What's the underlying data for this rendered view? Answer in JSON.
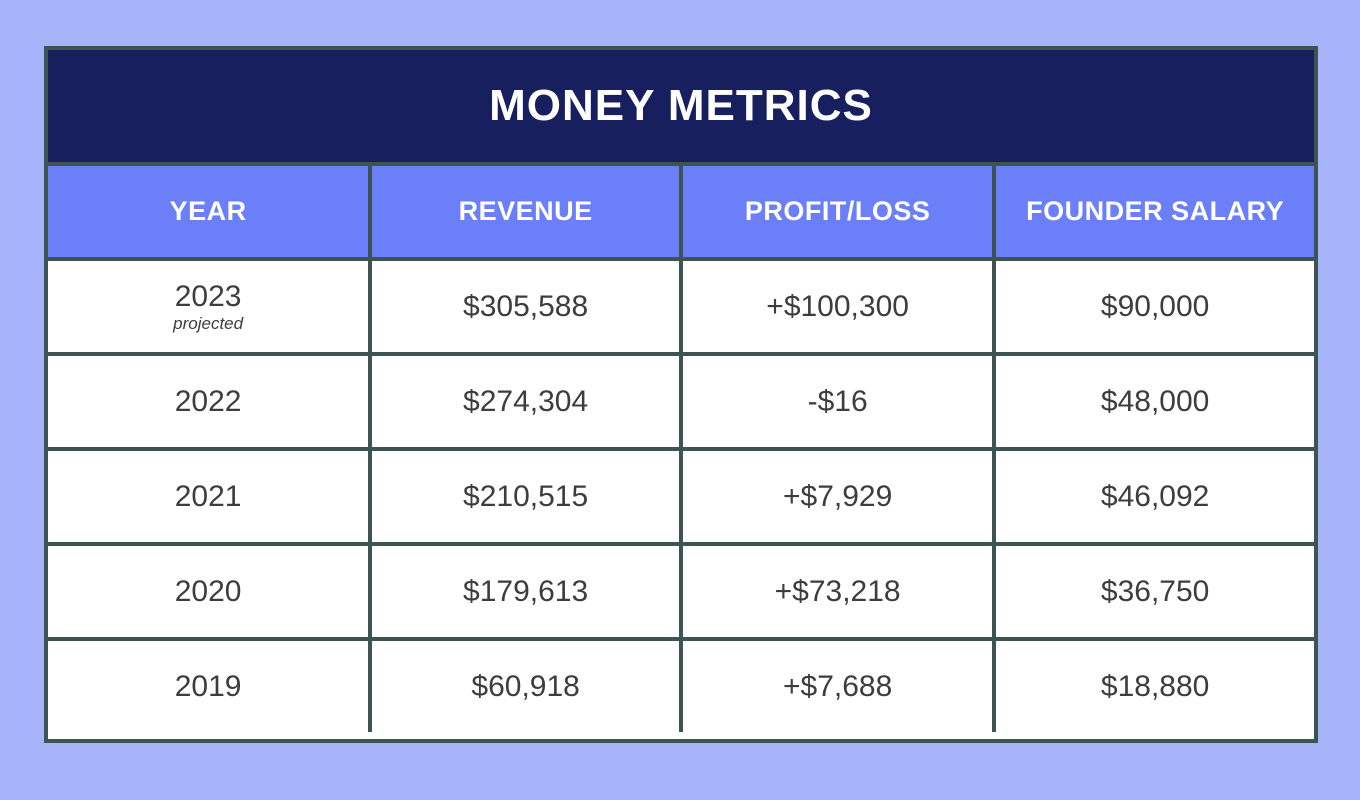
{
  "title": "MONEY METRICS",
  "colors": {
    "page_background": "#a8b4fa",
    "title_bar_background": "#171f5e",
    "header_background": "#6b80f8",
    "border": "#3e5354",
    "cell_background": "#ffffff",
    "cell_text": "#3d3d3d",
    "header_text": "#ffffff"
  },
  "chart_data": {
    "type": "table",
    "title": "MONEY METRICS",
    "columns": [
      "YEAR",
      "REVENUE",
      "PROFIT/LOSS",
      "FOUNDER SALARY"
    ],
    "rows": [
      {
        "year": "2023",
        "year_note": "projected",
        "revenue": "$305,588",
        "profit_loss": "+$100,300",
        "founder_salary": "$90,000"
      },
      {
        "year": "2022",
        "year_note": "",
        "revenue": "$274,304",
        "profit_loss": "-$16",
        "founder_salary": "$48,000"
      },
      {
        "year": "2021",
        "year_note": "",
        "revenue": "$210,515",
        "profit_loss": "+$7,929",
        "founder_salary": "$46,092"
      },
      {
        "year": "2020",
        "year_note": "",
        "revenue": "$179,613",
        "profit_loss": "+$73,218",
        "founder_salary": "$36,750"
      },
      {
        "year": "2019",
        "year_note": "",
        "revenue": "$60,918",
        "profit_loss": "+$7,688",
        "founder_salary": "$18,880"
      }
    ]
  }
}
